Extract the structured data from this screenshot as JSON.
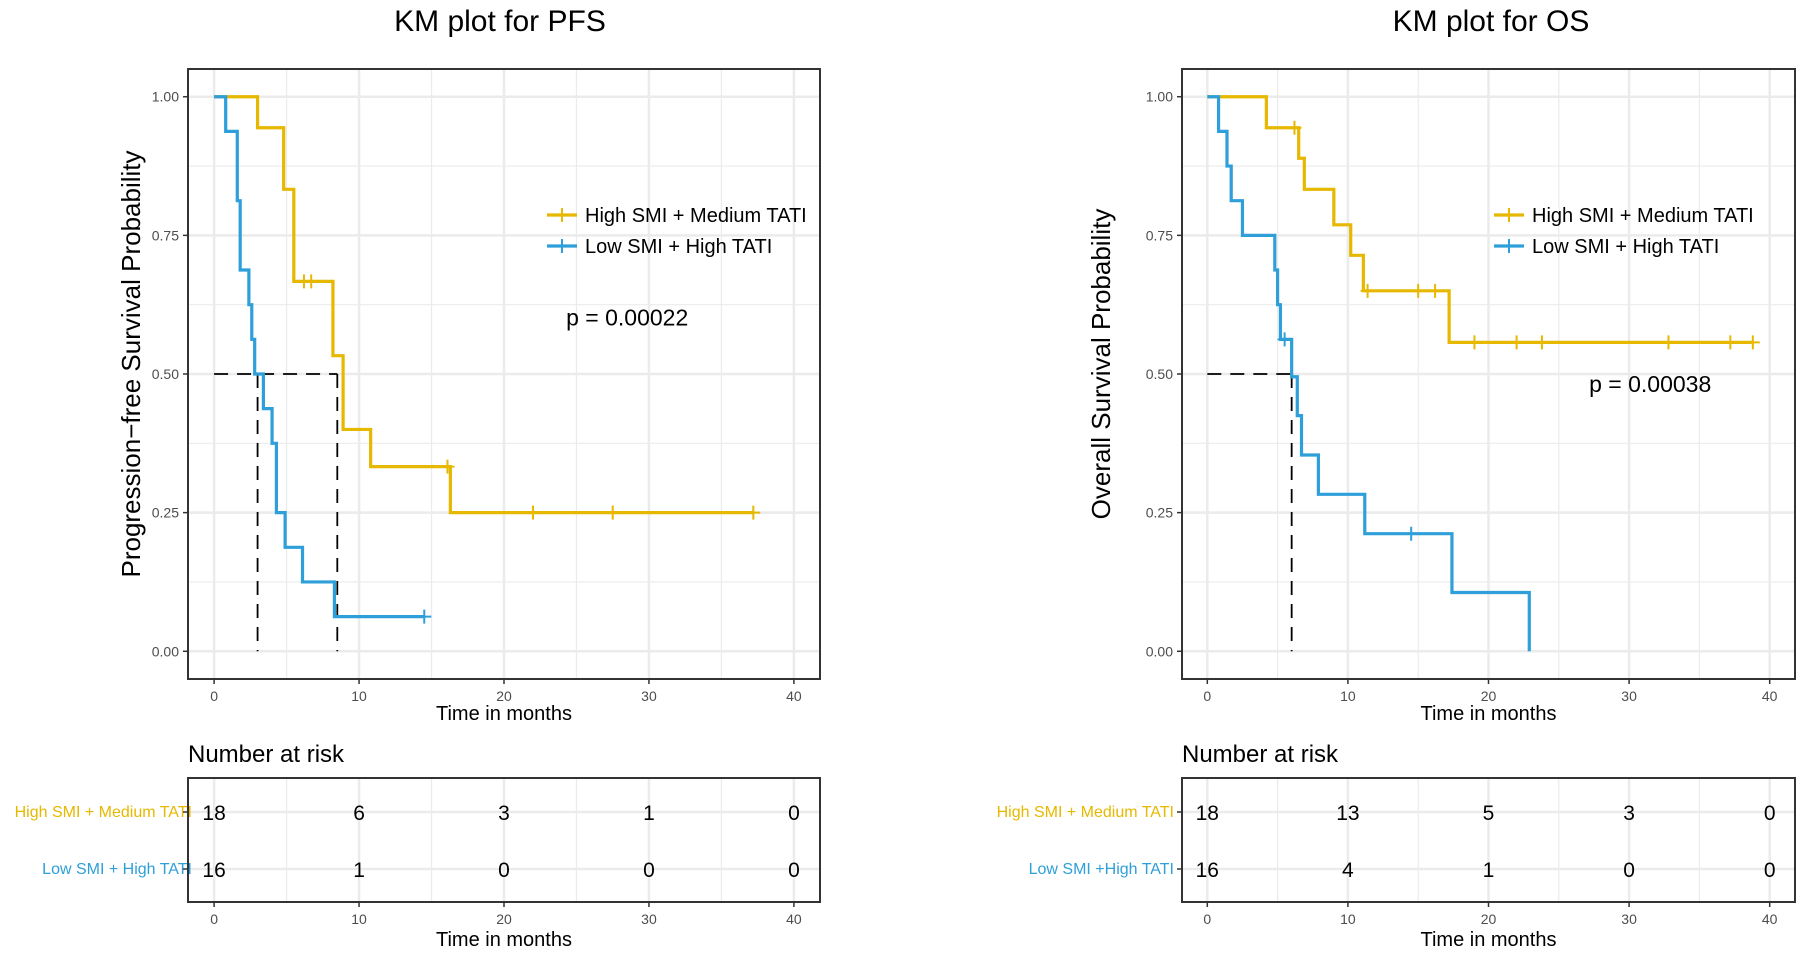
{
  "colors": {
    "high": "#E6B800",
    "low": "#2E9FD9",
    "grid": "#EBEBEB",
    "axis": "#333333"
  },
  "chart_data": [
    {
      "type": "line",
      "subtype": "kaplan-meier",
      "title": "KM plot for PFS",
      "xlabel": "Time in months",
      "ylabel": "Progression−free Survival Probability",
      "xlim": [
        -1.8,
        41.8
      ],
      "ylim": [
        -0.05,
        1.05
      ],
      "xticks": [
        "0",
        "10",
        "20",
        "30",
        "40"
      ],
      "yticks": [
        "0.00",
        "0.25",
        "0.50",
        "0.75",
        "1.00"
      ],
      "legend": [
        "High SMI + Medium TATI",
        "Low SMI + High TATI"
      ],
      "legend_position": "top-right",
      "pvalue": "p = 0.00022",
      "pvalue_pos": [
        28.5,
        0.6
      ],
      "median_lines": [
        3.0,
        8.5
      ],
      "series": [
        {
          "name": "High SMI + Medium TATI",
          "color_key": "high",
          "x": [
            0,
            3.0,
            4.8,
            5.5,
            8.2,
            8.9,
            10.8,
            16.3,
            37.2
          ],
          "y": [
            1.0,
            0.944,
            0.833,
            0.667,
            0.533,
            0.4,
            0.333,
            0.25,
            0.25
          ],
          "censor_x": [
            6.2,
            6.7,
            16.1,
            22.0,
            27.5,
            37.2
          ],
          "censor_y": [
            0.667,
            0.667,
            0.333,
            0.25,
            0.25,
            0.25
          ]
        },
        {
          "name": "Low SMI + High TATI",
          "color_key": "low",
          "x": [
            0,
            0.8,
            1.6,
            1.8,
            2.4,
            2.6,
            2.8,
            3.4,
            4.0,
            4.3,
            4.9,
            6.1,
            8.3,
            14.5
          ],
          "y": [
            1.0,
            0.9375,
            0.8125,
            0.6875,
            0.625,
            0.5625,
            0.5,
            0.4375,
            0.375,
            0.25,
            0.1875,
            0.125,
            0.0625,
            0.0625
          ],
          "censor_x": [
            14.5
          ],
          "censor_y": [
            0.0625
          ]
        }
      ],
      "risk_table": {
        "title": "Number at risk",
        "xlabel": "Time in months",
        "xticks": [
          "0",
          "10",
          "20",
          "30",
          "40"
        ],
        "rows": [
          {
            "label": "High SMI + Medium TATI",
            "color_key": "high",
            "values": [
              "18",
              "6",
              "3",
              "1",
              "0"
            ]
          },
          {
            "label": "Low SMI + High TATI",
            "color_key": "low",
            "values": [
              "16",
              "1",
              "0",
              "0",
              "0"
            ]
          }
        ]
      }
    },
    {
      "type": "line",
      "subtype": "kaplan-meier",
      "title": "KM plot for OS",
      "xlabel": "Time in months",
      "ylabel": "Overall Survival Probability",
      "xlim": [
        -1.8,
        41.8
      ],
      "ylim": [
        -0.05,
        1.05
      ],
      "xticks": [
        "0",
        "10",
        "20",
        "30",
        "40"
      ],
      "yticks": [
        "0.00",
        "0.25",
        "0.50",
        "0.75",
        "1.00"
      ],
      "legend": [
        "High SMI + Medium TATI",
        "Low SMI + High TATI"
      ],
      "legend_position": "top-right",
      "pvalue": "p = 0.00038",
      "pvalue_pos": [
        31.5,
        0.48
      ],
      "median_lines": [
        6.0
      ],
      "series": [
        {
          "name": "High SMI + Medium TATI",
          "color_key": "high",
          "x": [
            0,
            4.2,
            6.5,
            6.9,
            9.0,
            10.2,
            11.1,
            17.2,
            38.8
          ],
          "y": [
            1.0,
            0.944,
            0.889,
            0.833,
            0.769,
            0.714,
            0.65,
            0.557,
            0.557
          ],
          "censor_x": [
            6.2,
            11.4,
            15.0,
            16.2,
            19.0,
            22.0,
            23.8,
            32.8,
            37.2,
            38.8
          ],
          "censor_y": [
            0.944,
            0.65,
            0.65,
            0.65,
            0.557,
            0.557,
            0.557,
            0.557,
            0.557,
            0.557
          ]
        },
        {
          "name": "Low SMI + High TATI",
          "color_key": "low",
          "x": [
            0,
            0.8,
            1.4,
            1.7,
            2.5,
            4.8,
            5.0,
            5.2,
            6.0,
            6.4,
            6.7,
            7.9,
            11.2,
            17.4,
            22.9
          ],
          "y": [
            1.0,
            0.9375,
            0.875,
            0.8125,
            0.75,
            0.6875,
            0.625,
            0.5625,
            0.495,
            0.425,
            0.354,
            0.283,
            0.212,
            0.106,
            0.0
          ],
          "censor_x": [
            5.5,
            14.5
          ],
          "censor_y": [
            0.5625,
            0.212
          ]
        }
      ],
      "risk_table": {
        "title": "Number at risk",
        "xlabel": "Time in months",
        "xticks": [
          "0",
          "10",
          "20",
          "30",
          "40"
        ],
        "rows": [
          {
            "label": "High SMI + Medium TATI",
            "color_key": "high",
            "values": [
              "18",
              "13",
              "5",
              "3",
              "0"
            ]
          },
          {
            "label": "Low SMI +High TATI",
            "color_key": "low",
            "values": [
              "16",
              "4",
              "1",
              "0",
              "0"
            ]
          }
        ]
      }
    }
  ]
}
